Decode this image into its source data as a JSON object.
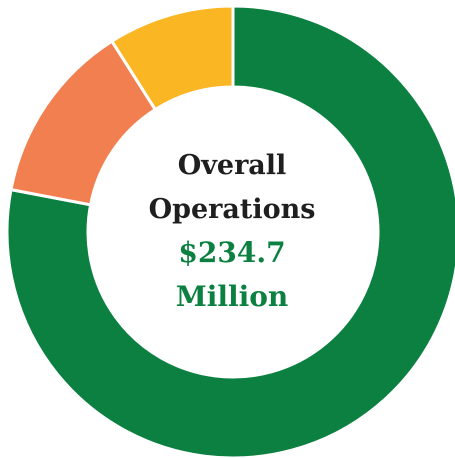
{
  "chart_data": {
    "type": "pie",
    "variant": "donut",
    "center_text": {
      "title_line1": "Overall",
      "title_line2": "Operations",
      "total_line1": "$234.7",
      "total_line2": "Million"
    },
    "slices": [
      {
        "value": 78,
        "color": "#0b8040"
      },
      {
        "value": 13,
        "color": "#f27f4f"
      },
      {
        "value": 9,
        "color": "#fbb624"
      }
    ],
    "start_angle_deg": 0,
    "direction": "clockwise",
    "legend": "none"
  },
  "colors": {
    "title": "#1f1f1f",
    "total": "#0b8040",
    "separator": "#ffffff"
  }
}
